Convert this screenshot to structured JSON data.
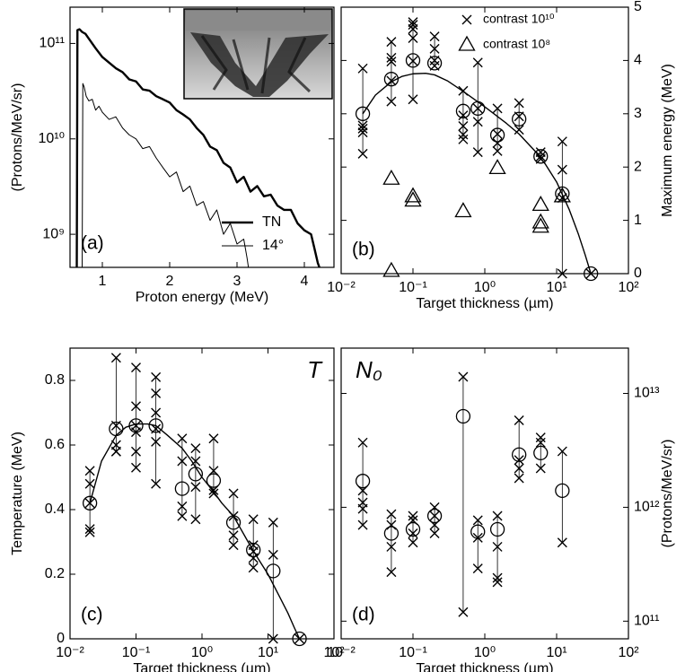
{
  "chart_data": [
    {
      "type": "line",
      "panel_label": "(a)",
      "xlabel": "Proton energy (MeV)",
      "ylabel": "(Protons/MeV/sr)",
      "xlim": [
        0.52,
        4.44
      ],
      "xticks": [
        1,
        2,
        3,
        4
      ],
      "yscale": "log",
      "ylim": [
        450000000.0,
        240000000000.0
      ],
      "yticks": [
        {
          "value": 1000000000.0,
          "label": "10⁹"
        },
        {
          "value": 10000000000.0,
          "label": "10¹⁰"
        },
        {
          "value": 100000000000.0,
          "label": "10¹¹"
        }
      ],
      "y_axis_side": "left",
      "legend": "right",
      "series": [
        {
          "name": "TN",
          "color": "#000000",
          "linewidth": 2.4,
          "marker": "line",
          "x": [
            0.62,
            0.63,
            0.66,
            0.7,
            0.75,
            0.8,
            0.9,
            1.0,
            1.1,
            1.2,
            1.3,
            1.4,
            1.5,
            1.6,
            1.7,
            1.8,
            1.9,
            2.0,
            2.1,
            2.2,
            2.3,
            2.4,
            2.5,
            2.6,
            2.7,
            2.8,
            2.9,
            3.0,
            3.1,
            3.2,
            3.3,
            3.4,
            3.5,
            3.6,
            3.7,
            3.8,
            3.9,
            4.0,
            4.1,
            4.15,
            4.2,
            4.25
          ],
          "values": [
            400000000.0,
            138000000000.0,
            141000000000.0,
            132000000000.0,
            126000000000.0,
            112000000000.0,
            89000000000.0,
            72000000000.0,
            63000000000.0,
            55000000000.0,
            50000000000.0,
            42000000000.0,
            40000000000.0,
            33000000000.0,
            32000000000.0,
            28000000000.0,
            26000000000.0,
            24000000000.0,
            20000000000.0,
            18000000000.0,
            16000000000.0,
            13000000000.0,
            11000000000.0,
            8300000000.0,
            7600000000.0,
            5600000000.0,
            5000000000.0,
            3500000000.0,
            4000000000.0,
            2800000000.0,
            3200000000.0,
            2500000000.0,
            2600000000.0,
            2000000000.0,
            1800000000.0,
            1800000000.0,
            1300000000.0,
            1100000000.0,
            1000000000.0,
            710000000.0,
            500000000.0,
            400000000.0
          ]
        },
        {
          "name": "14°",
          "color": "#000000",
          "linewidth": 1,
          "marker": "line",
          "x": [
            0.7,
            0.71,
            0.73,
            0.76,
            0.8,
            0.85,
            0.9,
            0.95,
            1.0,
            1.1,
            1.2,
            1.3,
            1.4,
            1.5,
            1.6,
            1.7,
            1.8,
            1.9,
            2.0,
            2.1,
            2.2,
            2.3,
            2.4,
            2.5,
            2.6,
            2.7,
            2.8,
            2.9,
            3.0,
            3.1,
            3.15,
            3.2
          ],
          "values": [
            400000000.0,
            38000000000.0,
            35000000000.0,
            28000000000.0,
            25000000000.0,
            26000000000.0,
            20000000000.0,
            22000000000.0,
            19000000000.0,
            16000000000.0,
            17000000000.0,
            13000000000.0,
            11000000000.0,
            10000000000.0,
            7900000000.0,
            8300000000.0,
            6300000000.0,
            5000000000.0,
            4000000000.0,
            4500000000.0,
            2800000000.0,
            3200000000.0,
            2000000000.0,
            2200000000.0,
            1400000000.0,
            1800000000.0,
            1000000000.0,
            1300000000.0,
            790000000.0,
            890000000.0,
            560000000.0,
            320000000.0
          ]
        }
      ]
    },
    {
      "type": "scatter",
      "panel_label": "(b)",
      "xlabel": "Target thickness (µm)",
      "ylabel": "Maximum energy (MeV)",
      "xscale": "log",
      "xlim": [
        0.01,
        100
      ],
      "xticks": [
        {
          "value": 0.01,
          "label": "10⁻²"
        },
        {
          "value": 0.1,
          "label": "10⁻¹"
        },
        {
          "value": 1,
          "label": "10⁰"
        },
        {
          "value": 10,
          "label": "10¹"
        },
        {
          "value": 100,
          "label": "10²"
        }
      ],
      "ylim": [
        0,
        5
      ],
      "yticks": [
        0,
        1,
        2,
        3,
        4,
        5
      ],
      "y_axis_side": "right",
      "legend": "upper right",
      "series": [
        {
          "name": "contrast 10¹⁰",
          "color": "#000000",
          "marker": "x",
          "x": [
            0.02,
            0.02,
            0.02,
            0.02,
            0.02,
            0.05,
            0.05,
            0.05,
            0.05,
            0.05,
            0.1,
            0.1,
            0.1,
            0.1,
            0.1,
            0.1,
            0.2,
            0.2,
            0.2,
            0.2,
            0.5,
            0.5,
            0.5,
            0.5,
            0.5,
            0.8,
            0.8,
            0.8,
            0.8,
            1.5,
            1.5,
            1.5,
            1.5,
            3,
            3,
            3,
            6,
            6,
            6,
            12,
            12,
            12,
            12,
            30
          ],
          "values": [
            3.85,
            2.78,
            2.72,
            2.65,
            2.25,
            4.35,
            4.05,
            3.98,
            3.62,
            3.23,
            4.72,
            4.67,
            4.59,
            4.42,
            3.99,
            3.27,
            4.45,
            4.22,
            4.0,
            3.9,
            3.43,
            2.97,
            2.77,
            2.61,
            2.52,
            3.96,
            3.1,
            2.85,
            2.28,
            3.1,
            2.62,
            2.45,
            2.3,
            3.2,
            2.95,
            2.7,
            2.28,
            2.2,
            2.15,
            2.48,
            1.95,
            1.42,
            0,
            0
          ]
        },
        {
          "name": "contrast 10⁸",
          "color": "#000000",
          "marker": "triangle",
          "x": [
            0.05,
            0.05,
            0.1,
            0.1,
            0.5,
            1.5,
            6,
            6,
            6,
            12
          ],
          "values": [
            1.78,
            0.05,
            1.45,
            1.37,
            1.17,
            1.98,
            1.29,
            0.96,
            0.88,
            1.45
          ]
        },
        {
          "color": "#000000",
          "marker": "circle",
          "x": [
            0.02,
            0.05,
            0.1,
            0.2,
            0.5,
            0.8,
            1.5,
            3,
            6,
            12,
            30
          ],
          "values": [
            3.0,
            3.65,
            4.0,
            3.95,
            3.05,
            3.1,
            2.6,
            2.9,
            2.2,
            1.5,
            0
          ]
        },
        {
          "color": "#000000",
          "marker": "line",
          "linewidth": 1.4,
          "x": [
            0.02,
            0.03,
            0.05,
            0.07,
            0.1,
            0.15,
            0.2,
            0.3,
            0.5,
            0.7,
            1,
            1.5,
            2,
            3,
            5,
            7,
            10,
            15,
            20,
            25,
            30
          ],
          "values": [
            3.0,
            3.35,
            3.6,
            3.7,
            3.75,
            3.76,
            3.73,
            3.62,
            3.42,
            3.28,
            3.13,
            2.95,
            2.82,
            2.62,
            2.3,
            2.05,
            1.72,
            1.2,
            0.75,
            0.35,
            0
          ]
        }
      ]
    },
    {
      "type": "scatter",
      "panel_label": "(c)",
      "corner_label": "T",
      "xlabel": "Target thickness (µm)",
      "ylabel": "Temperature (MeV)",
      "xscale": "log",
      "xlim": [
        0.01,
        100
      ],
      "xticks": [
        {
          "value": 0.01,
          "label": "10⁻²"
        },
        {
          "value": 0.1,
          "label": "10⁻¹"
        },
        {
          "value": 1,
          "label": "10⁰"
        },
        {
          "value": 10,
          "label": "10¹"
        },
        {
          "value": 100,
          "label": "10²"
        }
      ],
      "ylim": [
        0,
        0.9
      ],
      "yticks": [
        0,
        0.2,
        0.4,
        0.6,
        0.8
      ],
      "y_axis_side": "left",
      "series": [
        {
          "color": "#000000",
          "marker": "x",
          "x": [
            0.02,
            0.02,
            0.02,
            0.02,
            0.02,
            0.05,
            0.05,
            0.05,
            0.05,
            0.05,
            0.1,
            0.1,
            0.1,
            0.1,
            0.1,
            0.1,
            0.2,
            0.2,
            0.2,
            0.2,
            0.2,
            0.2,
            0.5,
            0.5,
            0.5,
            0.5,
            0.8,
            0.8,
            0.8,
            0.8,
            1.5,
            1.5,
            1.5,
            1.5,
            3,
            3,
            3,
            3,
            6,
            6,
            6,
            6,
            6,
            12,
            12,
            12,
            30
          ],
          "values": [
            0.52,
            0.48,
            0.42,
            0.34,
            0.33,
            0.87,
            0.66,
            0.6,
            0.58,
            0.58,
            0.84,
            0.72,
            0.66,
            0.64,
            0.58,
            0.53,
            0.81,
            0.76,
            0.7,
            0.65,
            0.61,
            0.48,
            0.62,
            0.55,
            0.41,
            0.38,
            0.59,
            0.55,
            0.47,
            0.37,
            0.62,
            0.52,
            0.46,
            0.45,
            0.45,
            0.38,
            0.32,
            0.29,
            0.37,
            0.29,
            0.27,
            0.25,
            0.22,
            0.36,
            0.26,
            0,
            0
          ]
        },
        {
          "color": "#000000",
          "marker": "circle",
          "x": [
            0.02,
            0.05,
            0.1,
            0.2,
            0.5,
            0.8,
            1.5,
            3,
            6,
            12,
            30
          ],
          "values": [
            0.42,
            0.65,
            0.66,
            0.66,
            0.465,
            0.51,
            0.49,
            0.36,
            0.275,
            0.21,
            0
          ]
        },
        {
          "color": "#000000",
          "marker": "line",
          "linewidth": 1.4,
          "x": [
            0.02,
            0.03,
            0.05,
            0.07,
            0.1,
            0.15,
            0.2,
            0.3,
            0.5,
            0.7,
            1,
            1.5,
            2,
            3,
            5,
            7,
            10,
            15,
            20,
            25,
            30
          ],
          "values": [
            0.42,
            0.55,
            0.63,
            0.655,
            0.665,
            0.665,
            0.66,
            0.63,
            0.59,
            0.55,
            0.5,
            0.455,
            0.42,
            0.38,
            0.3,
            0.25,
            0.2,
            0.13,
            0.08,
            0.035,
            0
          ]
        }
      ]
    },
    {
      "type": "scatter",
      "panel_label": "(d)",
      "corner_label": "N₀",
      "xlabel": "Target thickness (µm)",
      "ylabel": "(Protons/MeV/sr)",
      "xscale": "log",
      "xlim": [
        0.01,
        100
      ],
      "xticks": [
        {
          "value": 0.01,
          "label": "10⁻²"
        },
        {
          "value": 0.1,
          "label": "10⁻¹"
        },
        {
          "value": 1,
          "label": "10⁰"
        },
        {
          "value": 10,
          "label": "10¹"
        },
        {
          "value": 100,
          "label": "10²"
        }
      ],
      "yscale": "log",
      "ylim": [
        70000000000.0,
        25000000000000.0
      ],
      "yticks": [
        {
          "value": 100000000000.0,
          "label": "10¹¹"
        },
        {
          "value": 1000000000000.0,
          "label": "10¹²"
        },
        {
          "value": 10000000000000.0,
          "label": "10¹³"
        }
      ],
      "y_axis_side": "right",
      "series": [
        {
          "color": "#000000",
          "marker": "x",
          "x": [
            0.02,
            0.02,
            0.02,
            0.02,
            0.02,
            0.05,
            0.05,
            0.05,
            0.05,
            0.1,
            0.1,
            0.1,
            0.1,
            0.2,
            0.2,
            0.2,
            0.2,
            0.5,
            0.5,
            0.8,
            0.8,
            0.8,
            1.5,
            1.5,
            1.5,
            1.5,
            3,
            3,
            3,
            3,
            6,
            6,
            6,
            12,
            12
          ],
          "values": [
            3700000000000.0,
            1400000000000.0,
            1100000000000.0,
            970000000000.0,
            700000000000.0,
            870000000000.0,
            700000000000.0,
            450000000000.0,
            270000000000.0,
            840000000000.0,
            770000000000.0,
            590000000000.0,
            490000000000.0,
            1000000000000.0,
            840000000000.0,
            700000000000.0,
            590000000000.0,
            14000000000000.0,
            120000000000.0,
            770000000000.0,
            540000000000.0,
            290000000000.0,
            840000000000.0,
            450000000000.0,
            240000000000.0,
            220000000000.0,
            5800000000000.0,
            2600000000000.0,
            2200000000000.0,
            1800000000000.0,
            4100000000000.0,
            3700000000000.0,
            2200000000000.0,
            3100000000000.0,
            490000000000.0
          ]
        },
        {
          "color": "#000000",
          "marker": "circle",
          "x": [
            0.02,
            0.05,
            0.1,
            0.2,
            0.5,
            0.8,
            1.5,
            3,
            6,
            12
          ],
          "values": [
            1700000000000.0,
            590000000000.0,
            640000000000.0,
            840000000000.0,
            6300000000000.0,
            610000000000.0,
            640000000000.0,
            2900000000000.0,
            3000000000000.0,
            1400000000000.0
          ]
        }
      ]
    }
  ]
}
